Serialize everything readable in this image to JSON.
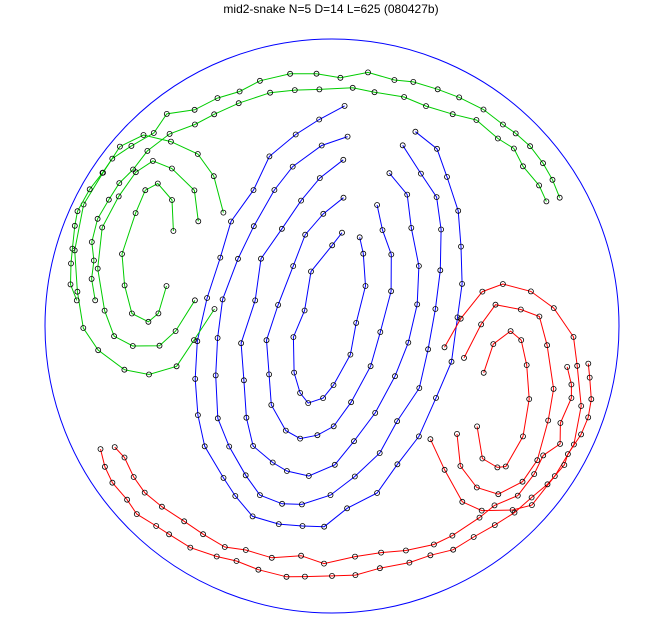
{
  "title": "mid2-snake N=5 D=14 L=625 (080427b)",
  "colors": {
    "boundary": "#0000ff",
    "snake_a": "#00cc00",
    "snake_b": "#ff0000",
    "snake_c": "#0000ff",
    "vertex": "#000000"
  }
}
